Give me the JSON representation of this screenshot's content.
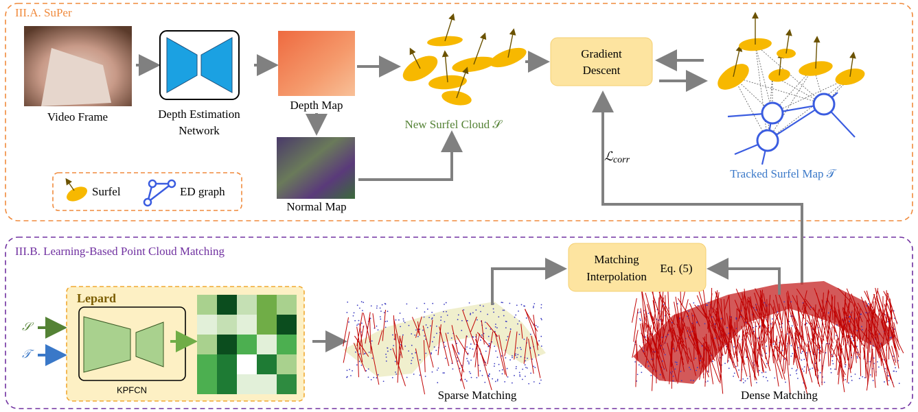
{
  "super": {
    "title": "III.A. SuPer",
    "video_frame": "Video Frame",
    "network": [
      "Depth Estimation",
      "Network"
    ],
    "depth_map": "Depth Map",
    "normal_map": "Normal Map",
    "surfel_cloud": "New Surfel Cloud 𝒮",
    "gradient_descent": [
      "Gradient",
      "Descent"
    ],
    "tracked_map": "Tracked Surfel Map 𝒯",
    "loss": {
      "symbol": "ℒ",
      "subscript": "corr"
    },
    "legend": [
      "Surfel",
      "ED graph"
    ]
  },
  "matching": {
    "title": "III.B. Learning-Based Point Cloud Matching",
    "inputs": [
      "𝒮",
      "𝒯"
    ],
    "lepard": "Lepard",
    "kpfcn": "KPFCN",
    "interpolation": [
      "Matching",
      "Interpolation"
    ],
    "equation": "Eq. (5)",
    "sparse": "Sparse Matching",
    "dense": "Dense Matching"
  }
}
